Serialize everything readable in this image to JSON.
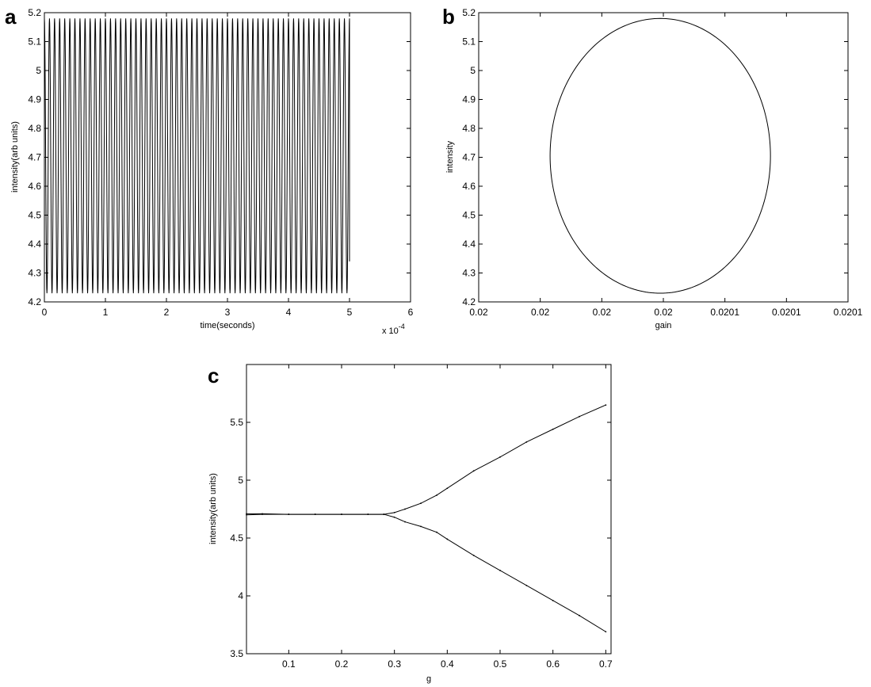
{
  "chart_data": [
    {
      "panel": "a",
      "type": "line",
      "xlabel": "time(seconds)",
      "ylabel": "intensity(arb units)",
      "x_multiplier": "x 10",
      "x_multiplier_exp": "-4",
      "xlim": [
        0,
        6
      ],
      "ylim": [
        4.2,
        5.2
      ],
      "xticks": [
        "0",
        "1",
        "2",
        "3",
        "4",
        "5",
        "6"
      ],
      "yticks": [
        "4.2",
        "4.3",
        "4.4",
        "4.5",
        "4.6",
        "4.7",
        "4.8",
        "4.9",
        "5",
        "5.1",
        "5.2"
      ],
      "series": [
        {
          "oscillation": {
            "x_start": 0,
            "x_end": 5,
            "cycles": 60,
            "y_min": 4.23,
            "y_max": 5.18,
            "last_y": 4.34
          }
        }
      ]
    },
    {
      "panel": "b",
      "type": "line",
      "xlabel": "gain",
      "ylabel": "intensity",
      "xlim": [
        0,
        6
      ],
      "ylim": [
        4.2,
        5.2
      ],
      "xticks": [
        "0.02",
        "0.02",
        "0.02",
        "0.02",
        "0.0201",
        "0.0201",
        "0.0201"
      ],
      "yticks": [
        "4.2",
        "4.3",
        "4.4",
        "4.5",
        "4.6",
        "4.7",
        "4.8",
        "4.9",
        "5",
        "5.1",
        "5.2"
      ],
      "series": [
        {
          "ellipse": {
            "x_center": 2.95,
            "x_radius": 1.79,
            "y_center": 4.705,
            "y_radius": 0.475
          }
        }
      ]
    },
    {
      "panel": "c",
      "type": "scatter",
      "xlabel": "g",
      "ylabel": "intensity(arb units)",
      "xlim": [
        0.02,
        0.71
      ],
      "ylim": [
        3.5,
        6.0
      ],
      "xticks": [
        "0.1",
        "0.2",
        "0.3",
        "0.4",
        "0.5",
        "0.6",
        "0.7"
      ],
      "xtick_values": [
        0.1,
        0.2,
        0.3,
        0.4,
        0.5,
        0.6,
        0.7
      ],
      "yticks": [
        "3.5",
        "4",
        "4.5",
        "5",
        "5.5"
      ],
      "ytick_values": [
        3.5,
        4,
        4.5,
        5,
        5.5
      ],
      "series": [
        {
          "x": [
            0.02,
            0.05,
            0.1,
            0.15,
            0.2,
            0.25,
            0.28,
            0.3,
            0.32,
            0.35,
            0.38,
            0.4,
            0.45,
            0.5,
            0.55,
            0.6,
            0.65,
            0.7
          ],
          "y": [
            4.71,
            4.71,
            4.705,
            4.705,
            4.705,
            4.705,
            4.705,
            4.72,
            4.75,
            4.8,
            4.87,
            4.93,
            5.08,
            5.2,
            5.33,
            5.44,
            5.55,
            5.65
          ]
        },
        {
          "x": [
            0.02,
            0.05,
            0.1,
            0.15,
            0.2,
            0.25,
            0.28,
            0.3,
            0.32,
            0.35,
            0.38,
            0.4,
            0.45,
            0.5,
            0.55,
            0.6,
            0.65,
            0.7
          ],
          "y": [
            4.7,
            4.705,
            4.705,
            4.705,
            4.705,
            4.705,
            4.705,
            4.68,
            4.64,
            4.6,
            4.55,
            4.49,
            4.35,
            4.22,
            4.09,
            3.96,
            3.83,
            3.69
          ]
        }
      ]
    }
  ]
}
